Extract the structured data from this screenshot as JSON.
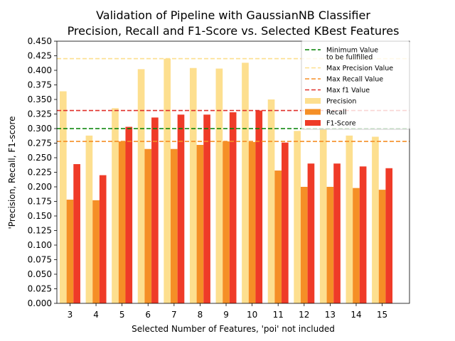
{
  "chart_data": {
    "type": "bar",
    "title": "Validation of Pipeline with GaussianNB Classifier",
    "subtitle": "Precision, Recall and F1-Score vs. Selected KBest Features",
    "xlabel": "Selected Number of Features, 'poi' not included",
    "ylabel": "'Precision, Recall, F1-score",
    "categories": [
      "3",
      "4",
      "5",
      "6",
      "7",
      "8",
      "9",
      "10",
      "11",
      "12",
      "13",
      "14",
      "15"
    ],
    "ylim": [
      0,
      0.45
    ],
    "yticks": [
      "0.000",
      "0.025",
      "0.050",
      "0.075",
      "0.100",
      "0.125",
      "0.150",
      "0.175",
      "0.200",
      "0.225",
      "0.250",
      "0.275",
      "0.300",
      "0.325",
      "0.350",
      "0.375",
      "0.400",
      "0.425",
      "0.450"
    ],
    "series": [
      {
        "name": "Precision",
        "color": "#fddf8f",
        "values": [
          0.364,
          0.288,
          0.335,
          0.402,
          0.42,
          0.404,
          0.403,
          0.413,
          0.35,
          0.296,
          0.3,
          0.288,
          0.286
        ]
      },
      {
        "name": "Recall",
        "color": "#f58f26",
        "values": [
          0.178,
          0.177,
          0.278,
          0.265,
          0.265,
          0.272,
          0.278,
          0.277,
          0.228,
          0.2,
          0.2,
          0.198,
          0.195
        ]
      },
      {
        "name": "F1-Score",
        "color": "#ef3b28",
        "values": [
          0.239,
          0.22,
          0.303,
          0.319,
          0.324,
          0.324,
          0.328,
          0.331,
          0.276,
          0.24,
          0.24,
          0.235,
          0.232
        ]
      }
    ],
    "reference_lines": [
      {
        "name": "Minimum Value\nto be fullfilled",
        "value": 0.3,
        "color": "#008000"
      },
      {
        "name": "Max Precision Value",
        "value": 0.42,
        "color": "#fddf8f"
      },
      {
        "name": "Max Recall Value",
        "value": 0.278,
        "color": "#f58f26"
      },
      {
        "name": "Max f1 Value",
        "value": 0.331,
        "color": "#e0302a"
      }
    ],
    "legend_position": "top-right",
    "grid": false
  }
}
